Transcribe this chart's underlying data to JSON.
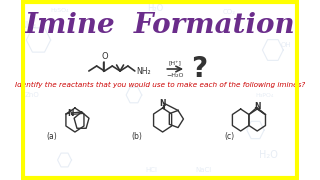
{
  "title": "Imine  Formation",
  "title_color": "#6B2D8B",
  "title_fontsize": 20,
  "bg_color": "#FFFFFF",
  "border_color": "#FFFF00",
  "border_lw": 3,
  "subtitle": "Identify the reactants that you would use to make each of the following imines?",
  "subtitle_color": "#CC0000",
  "subtitle_fontsize": 5.2,
  "label_a": "(a)",
  "label_b": "(b)",
  "label_c": "(c)",
  "line_color": "#333333",
  "wm_color": "#b0c4de",
  "wm_alpha": 0.3
}
